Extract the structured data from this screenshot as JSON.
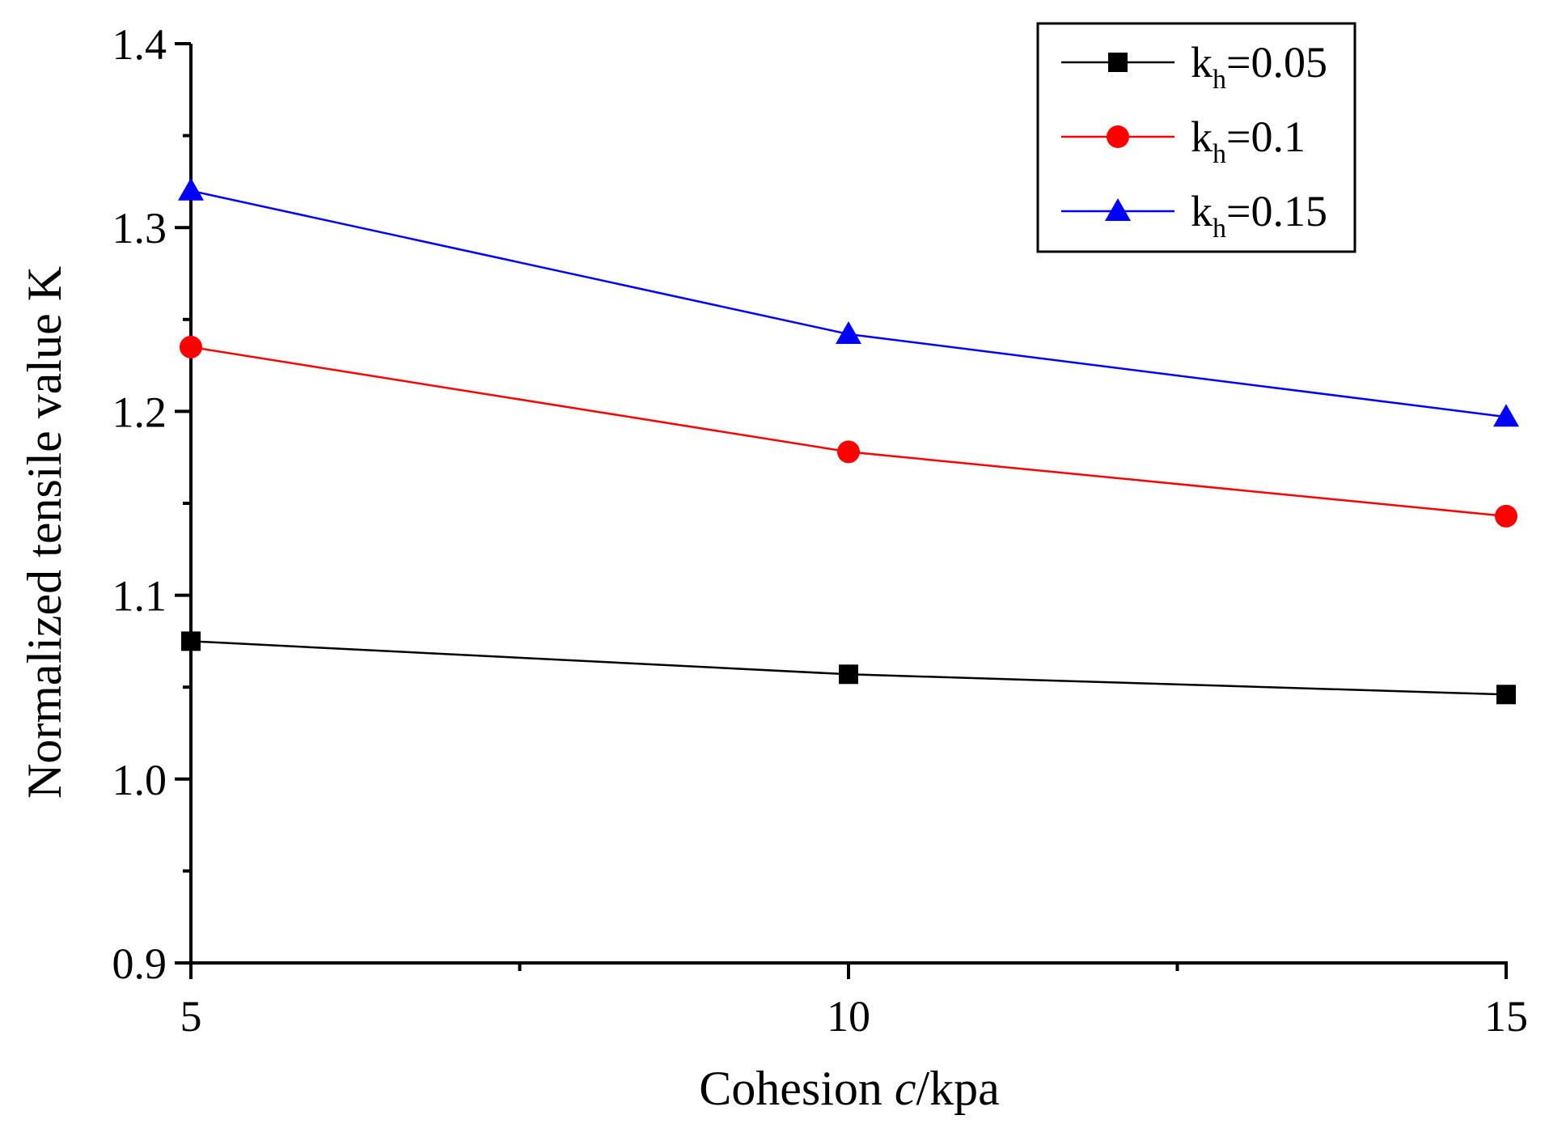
{
  "chart_data": {
    "type": "line",
    "title": "",
    "x": [
      5,
      10,
      15
    ],
    "xlabel": {
      "prefix": "Cohesion ",
      "italic": "c",
      "suffix": "/kpa"
    },
    "ylabel": "Normalized tensile value K",
    "xlim": [
      5,
      15
    ],
    "ylim": [
      0.9,
      1.4
    ],
    "xticks": [
      "5",
      "10",
      "15"
    ],
    "yticks": [
      "0.9",
      "1.0",
      "1.1",
      "1.2",
      "1.3",
      "1.4"
    ],
    "grid": false,
    "legend_position": "top-right",
    "series": [
      {
        "name": "kh=0.05",
        "label_base": "k",
        "label_sub": "h",
        "label_value": "=0.05",
        "marker": "square",
        "color": "#000000",
        "values": [
          1.075,
          1.057,
          1.046
        ]
      },
      {
        "name": "kh=0.1",
        "label_base": "k",
        "label_sub": "h",
        "label_value": "=0.1",
        "marker": "circle",
        "color": "#ff0000",
        "values": [
          1.235,
          1.178,
          1.143
        ]
      },
      {
        "name": "kh=0.15",
        "label_base": "k",
        "label_sub": "h",
        "label_value": "=0.15",
        "marker": "triangle",
        "color": "#0000ff",
        "values": [
          1.32,
          1.242,
          1.197
        ]
      }
    ]
  }
}
